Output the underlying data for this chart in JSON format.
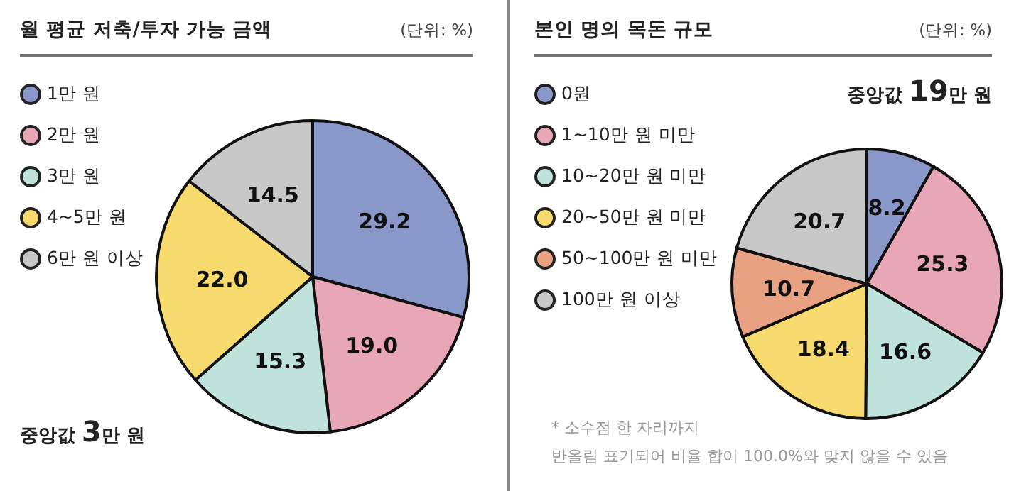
{
  "chart_data": [
    {
      "type": "pie",
      "title": "월 평균 저축/투자 가능 금액",
      "categories": [
        "1만 원",
        "2만 원",
        "3만 원",
        "4~5만 원",
        "6만 원 이상"
      ],
      "values": [
        29.2,
        19.0,
        15.3,
        22.0,
        14.5
      ],
      "value_labels": [
        "29.2",
        "19.0",
        "15.3",
        "22.0",
        "14.5"
      ],
      "colors": [
        "#8a98c9",
        "#e8a7b7",
        "#bfe3da",
        "#f7da6e",
        "#c8c8c8"
      ],
      "legend": "top left",
      "annotations": [
        "(단위: %)",
        "중앙값 3만 원"
      ]
    },
    {
      "type": "pie",
      "title": "본인 명의 목돈 규모",
      "categories": [
        "0원",
        "1~10만 원 미만",
        "10~20만 원 미만",
        "20~50만 원 미만",
        "50~100만 원 미만",
        "100만 원 이상"
      ],
      "values": [
        8.2,
        25.3,
        16.6,
        18.4,
        10.7,
        20.7
      ],
      "value_labels": [
        "8.2",
        "25.3",
        "16.6",
        "18.4",
        "10.7",
        "20.7"
      ],
      "colors": [
        "#8a98c9",
        "#e8a7b7",
        "#bfe3da",
        "#f7da6e",
        "#e9a184",
        "#c8c8c8"
      ],
      "legend": "top left",
      "annotations": [
        "(단위: %)",
        "중앙값 19만 원",
        "* 소수점 한 자리까지",
        "반올림 표기되어 비율 합이 100.0%와 맞지 않을 수 있음"
      ]
    }
  ]
}
